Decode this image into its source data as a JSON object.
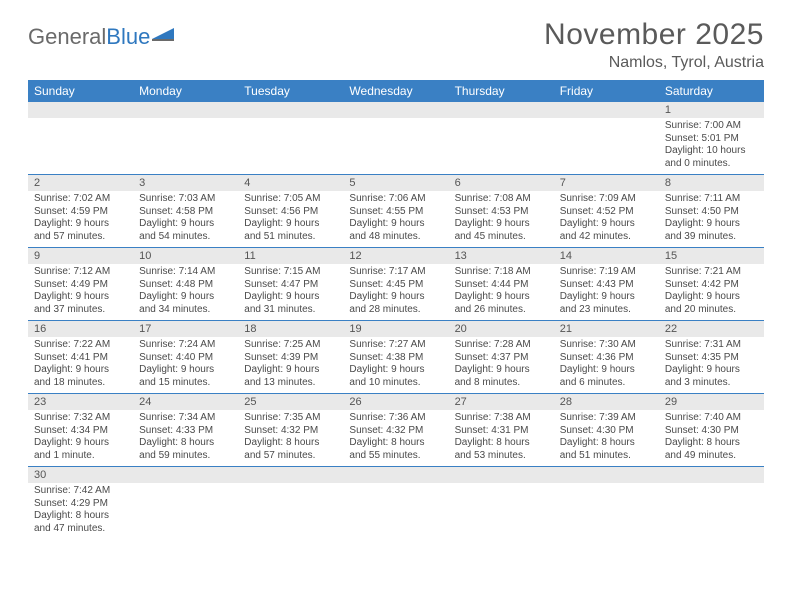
{
  "logo": {
    "part1": "General",
    "part2": "Blue"
  },
  "title": "November 2025",
  "location": "Namlos, Tyrol, Austria",
  "colors": {
    "header_bg": "#3a80c4",
    "header_text": "#ffffff",
    "daynum_bg": "#e9e9e9",
    "text": "#4a4a4a",
    "title_text": "#5a5a5a",
    "row_border": "#3a80c4",
    "logo_gray": "#6a6a6a",
    "logo_blue": "#2f78bf"
  },
  "days_of_week": [
    "Sunday",
    "Monday",
    "Tuesday",
    "Wednesday",
    "Thursday",
    "Friday",
    "Saturday"
  ],
  "weeks": [
    [
      null,
      null,
      null,
      null,
      null,
      null,
      {
        "n": "1",
        "sr": "Sunrise: 7:00 AM",
        "ss": "Sunset: 5:01 PM",
        "dl": "Daylight: 10 hours and 0 minutes."
      }
    ],
    [
      {
        "n": "2",
        "sr": "Sunrise: 7:02 AM",
        "ss": "Sunset: 4:59 PM",
        "dl": "Daylight: 9 hours and 57 minutes."
      },
      {
        "n": "3",
        "sr": "Sunrise: 7:03 AM",
        "ss": "Sunset: 4:58 PM",
        "dl": "Daylight: 9 hours and 54 minutes."
      },
      {
        "n": "4",
        "sr": "Sunrise: 7:05 AM",
        "ss": "Sunset: 4:56 PM",
        "dl": "Daylight: 9 hours and 51 minutes."
      },
      {
        "n": "5",
        "sr": "Sunrise: 7:06 AM",
        "ss": "Sunset: 4:55 PM",
        "dl": "Daylight: 9 hours and 48 minutes."
      },
      {
        "n": "6",
        "sr": "Sunrise: 7:08 AM",
        "ss": "Sunset: 4:53 PM",
        "dl": "Daylight: 9 hours and 45 minutes."
      },
      {
        "n": "7",
        "sr": "Sunrise: 7:09 AM",
        "ss": "Sunset: 4:52 PM",
        "dl": "Daylight: 9 hours and 42 minutes."
      },
      {
        "n": "8",
        "sr": "Sunrise: 7:11 AM",
        "ss": "Sunset: 4:50 PM",
        "dl": "Daylight: 9 hours and 39 minutes."
      }
    ],
    [
      {
        "n": "9",
        "sr": "Sunrise: 7:12 AM",
        "ss": "Sunset: 4:49 PM",
        "dl": "Daylight: 9 hours and 37 minutes."
      },
      {
        "n": "10",
        "sr": "Sunrise: 7:14 AM",
        "ss": "Sunset: 4:48 PM",
        "dl": "Daylight: 9 hours and 34 minutes."
      },
      {
        "n": "11",
        "sr": "Sunrise: 7:15 AM",
        "ss": "Sunset: 4:47 PM",
        "dl": "Daylight: 9 hours and 31 minutes."
      },
      {
        "n": "12",
        "sr": "Sunrise: 7:17 AM",
        "ss": "Sunset: 4:45 PM",
        "dl": "Daylight: 9 hours and 28 minutes."
      },
      {
        "n": "13",
        "sr": "Sunrise: 7:18 AM",
        "ss": "Sunset: 4:44 PM",
        "dl": "Daylight: 9 hours and 26 minutes."
      },
      {
        "n": "14",
        "sr": "Sunrise: 7:19 AM",
        "ss": "Sunset: 4:43 PM",
        "dl": "Daylight: 9 hours and 23 minutes."
      },
      {
        "n": "15",
        "sr": "Sunrise: 7:21 AM",
        "ss": "Sunset: 4:42 PM",
        "dl": "Daylight: 9 hours and 20 minutes."
      }
    ],
    [
      {
        "n": "16",
        "sr": "Sunrise: 7:22 AM",
        "ss": "Sunset: 4:41 PM",
        "dl": "Daylight: 9 hours and 18 minutes."
      },
      {
        "n": "17",
        "sr": "Sunrise: 7:24 AM",
        "ss": "Sunset: 4:40 PM",
        "dl": "Daylight: 9 hours and 15 minutes."
      },
      {
        "n": "18",
        "sr": "Sunrise: 7:25 AM",
        "ss": "Sunset: 4:39 PM",
        "dl": "Daylight: 9 hours and 13 minutes."
      },
      {
        "n": "19",
        "sr": "Sunrise: 7:27 AM",
        "ss": "Sunset: 4:38 PM",
        "dl": "Daylight: 9 hours and 10 minutes."
      },
      {
        "n": "20",
        "sr": "Sunrise: 7:28 AM",
        "ss": "Sunset: 4:37 PM",
        "dl": "Daylight: 9 hours and 8 minutes."
      },
      {
        "n": "21",
        "sr": "Sunrise: 7:30 AM",
        "ss": "Sunset: 4:36 PM",
        "dl": "Daylight: 9 hours and 6 minutes."
      },
      {
        "n": "22",
        "sr": "Sunrise: 7:31 AM",
        "ss": "Sunset: 4:35 PM",
        "dl": "Daylight: 9 hours and 3 minutes."
      }
    ],
    [
      {
        "n": "23",
        "sr": "Sunrise: 7:32 AM",
        "ss": "Sunset: 4:34 PM",
        "dl": "Daylight: 9 hours and 1 minute."
      },
      {
        "n": "24",
        "sr": "Sunrise: 7:34 AM",
        "ss": "Sunset: 4:33 PM",
        "dl": "Daylight: 8 hours and 59 minutes."
      },
      {
        "n": "25",
        "sr": "Sunrise: 7:35 AM",
        "ss": "Sunset: 4:32 PM",
        "dl": "Daylight: 8 hours and 57 minutes."
      },
      {
        "n": "26",
        "sr": "Sunrise: 7:36 AM",
        "ss": "Sunset: 4:32 PM",
        "dl": "Daylight: 8 hours and 55 minutes."
      },
      {
        "n": "27",
        "sr": "Sunrise: 7:38 AM",
        "ss": "Sunset: 4:31 PM",
        "dl": "Daylight: 8 hours and 53 minutes."
      },
      {
        "n": "28",
        "sr": "Sunrise: 7:39 AM",
        "ss": "Sunset: 4:30 PM",
        "dl": "Daylight: 8 hours and 51 minutes."
      },
      {
        "n": "29",
        "sr": "Sunrise: 7:40 AM",
        "ss": "Sunset: 4:30 PM",
        "dl": "Daylight: 8 hours and 49 minutes."
      }
    ],
    [
      {
        "n": "30",
        "sr": "Sunrise: 7:42 AM",
        "ss": "Sunset: 4:29 PM",
        "dl": "Daylight: 8 hours and 47 minutes."
      },
      null,
      null,
      null,
      null,
      null,
      null
    ]
  ]
}
